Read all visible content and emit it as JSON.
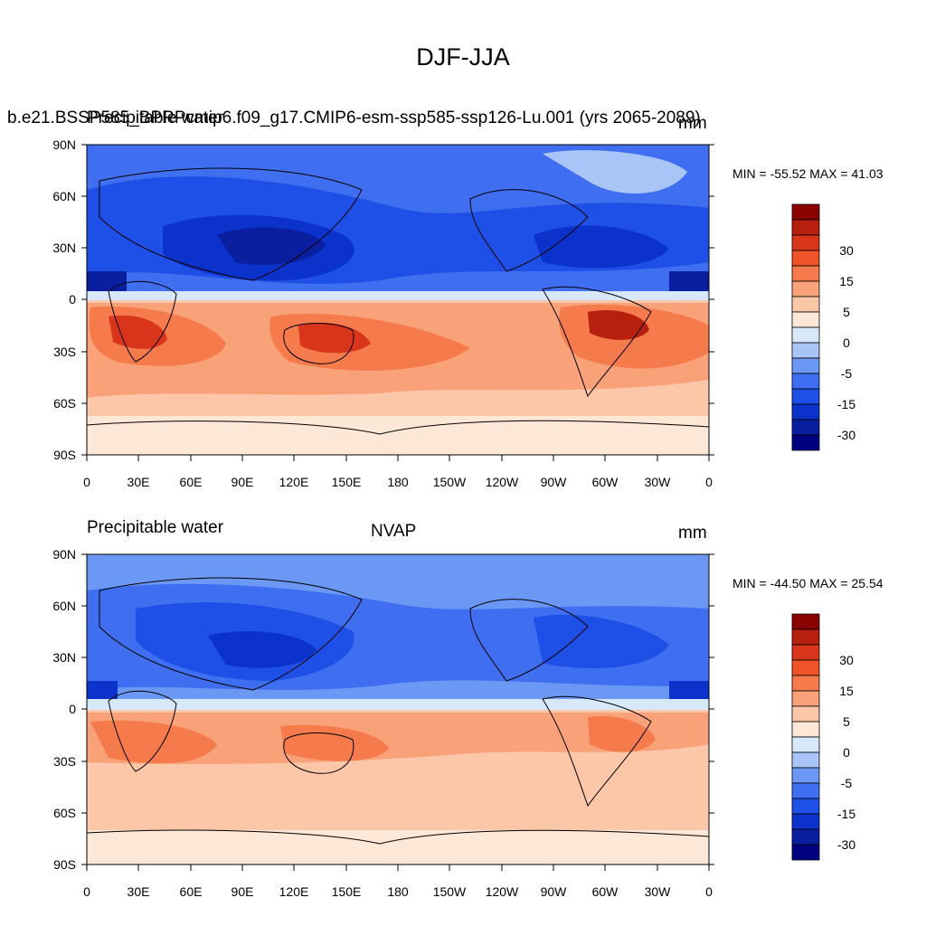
{
  "figure_title": "DJF-JJA",
  "colors": {
    "levels": [
      {
        "label": "",
        "color": "#000080"
      },
      {
        "label": "-30",
        "color": "#0a1ea0"
      },
      {
        "label": "",
        "color": "#0b33cc"
      },
      {
        "label": "-15",
        "color": "#1e4fe6"
      },
      {
        "label": "",
        "color": "#3f6ff0"
      },
      {
        "label": "-5",
        "color": "#6c98f5"
      },
      {
        "label": "",
        "color": "#a9c5f8"
      },
      {
        "label": "0",
        "color": "#d8e8fb"
      },
      {
        "label": "",
        "color": "#fde7d6"
      },
      {
        "label": "5",
        "color": "#fcc7a9"
      },
      {
        "label": "",
        "color": "#f9a27a"
      },
      {
        "label": "15",
        "color": "#f57b4d"
      },
      {
        "label": "",
        "color": "#ee5428"
      },
      {
        "label": "30",
        "color": "#d9351a"
      },
      {
        "label": "",
        "color": "#b71f0f"
      },
      {
        "label": "",
        "color": "#8b0000"
      }
    ]
  },
  "axes": {
    "lat_labels": [
      "90N",
      "60N",
      "30N",
      "0",
      "30S",
      "60S",
      "90S"
    ],
    "lon_labels": [
      "0",
      "30E",
      "60E",
      "90E",
      "120E",
      "150E",
      "180",
      "150W",
      "120W",
      "90W",
      "60W",
      "30W",
      "0"
    ]
  },
  "panels": [
    {
      "left_title": "b.e21.BSSP585_BPRPcmip6.f09_g17.CMIP6-esm-ssp585-ssp126-Lu.001 (yrs 2065-2089)",
      "left_title_overlay": "Precipitable water",
      "center_title": "",
      "units": "mm",
      "minmax": "MIN = -55.52 MAX =  41.03"
    },
    {
      "left_title": "Precipitable water",
      "left_title_overlay": "",
      "center_title": "NVAP",
      "units": "mm",
      "minmax": "MIN = -44.50 MAX =  25.54"
    }
  ]
}
